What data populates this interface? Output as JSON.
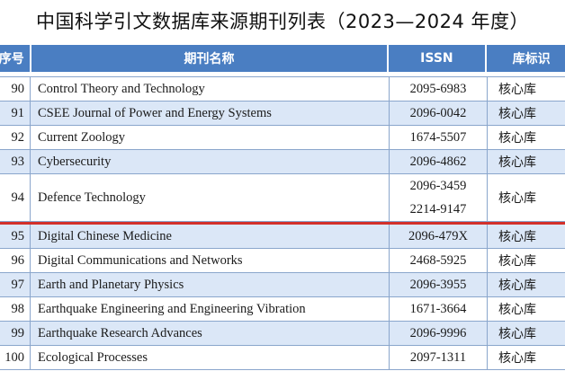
{
  "title": "中国科学引文数据库来源期刊列表（2023—2024 年度）",
  "columns": [
    "序号",
    "期刊名称",
    "ISSN",
    "库标识"
  ],
  "rows": [
    {
      "no": "90",
      "name": "Control Theory and Technology",
      "issn": [
        "2095-6983"
      ],
      "tag": "核心库"
    },
    {
      "no": "91",
      "name": "CSEE Journal of Power and Energy Systems",
      "issn": [
        "2096-0042"
      ],
      "tag": "核心库"
    },
    {
      "no": "92",
      "name": "Current Zoology",
      "issn": [
        "1674-5507"
      ],
      "tag": "核心库"
    },
    {
      "no": "93",
      "name": "Cybersecurity",
      "issn": [
        "2096-4862"
      ],
      "tag": "核心库"
    },
    {
      "no": "94",
      "name": "Defence Technology",
      "issn": [
        "2096-3459",
        "2214-9147"
      ],
      "tag": "核心库"
    },
    {
      "no": "95",
      "name": "Digital Chinese Medicine",
      "issn": [
        "2096-479X"
      ],
      "tag": "核心库",
      "highlight": true
    },
    {
      "no": "96",
      "name": "Digital Communications and Networks",
      "issn": [
        "2468-5925"
      ],
      "tag": "核心库"
    },
    {
      "no": "97",
      "name": "Earth and Planetary Physics",
      "issn": [
        "2096-3955"
      ],
      "tag": "核心库"
    },
    {
      "no": "98",
      "name": "Earthquake Engineering and Engineering Vibration",
      "issn": [
        "1671-3664"
      ],
      "tag": "核心库"
    },
    {
      "no": "99",
      "name": "Earthquake Research Advances",
      "issn": [
        "2096-9996"
      ],
      "tag": "核心库"
    },
    {
      "no": "100",
      "name": "Ecological Processes",
      "issn": [
        "2097-1311"
      ],
      "tag": "核心库"
    }
  ]
}
